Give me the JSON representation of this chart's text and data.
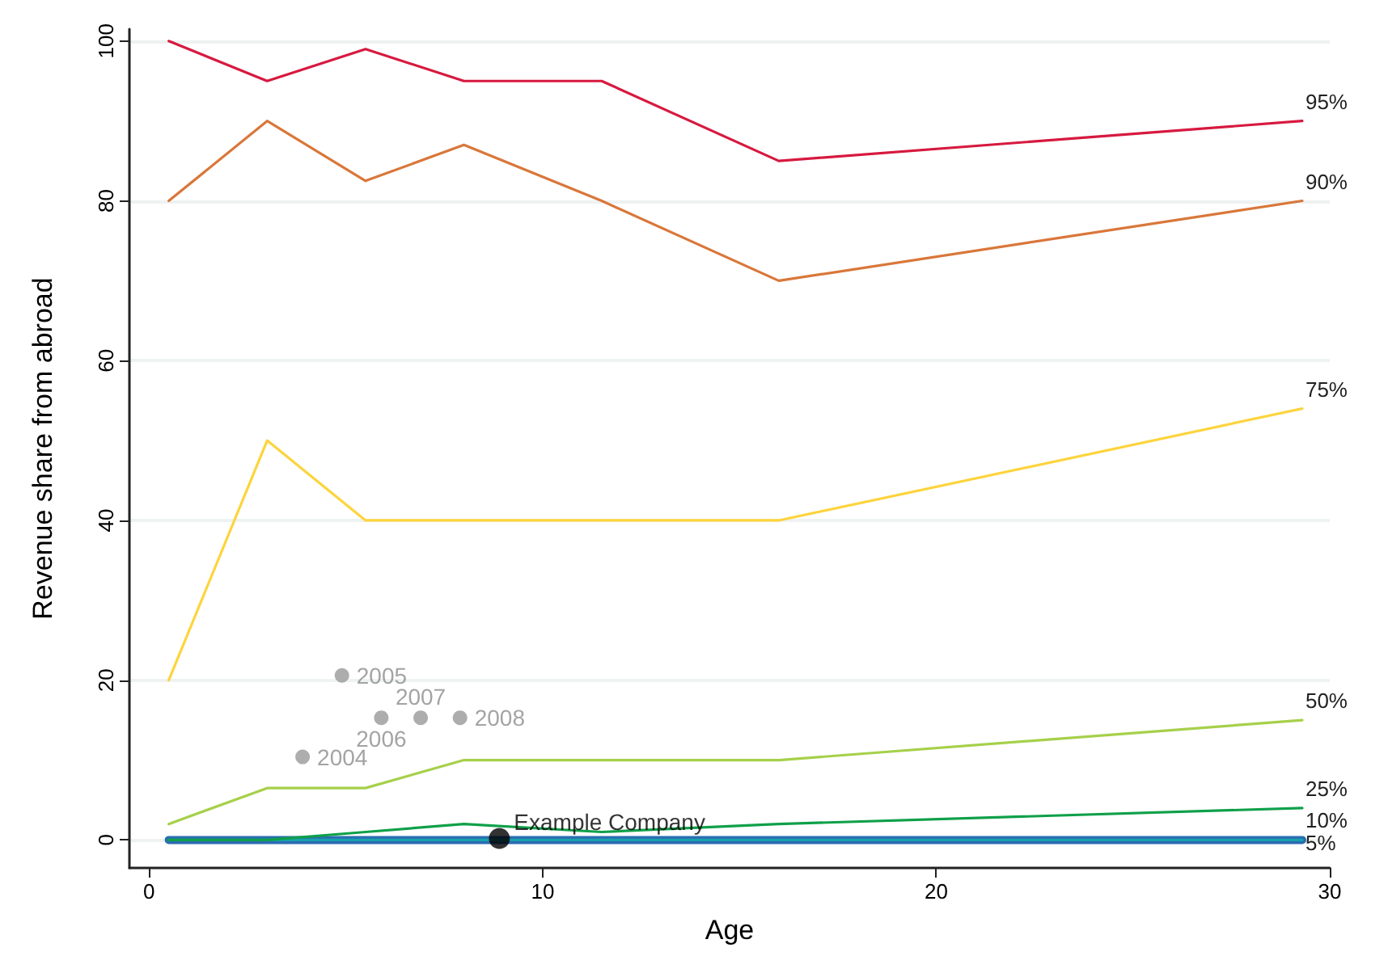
{
  "chart_data": {
    "type": "line",
    "xlabel": "Age",
    "ylabel": "Revenue share from abroad",
    "xlim": [
      -0.5,
      30
    ],
    "xticks": [
      0,
      10,
      20,
      30
    ],
    "ylim": [
      -3.5,
      101.5
    ],
    "yticks": [
      0,
      20,
      40,
      60,
      80,
      100
    ],
    "grid": "y",
    "legend": false,
    "x": [
      0.5,
      3,
      5.5,
      8,
      11.5,
      16,
      29.3
    ],
    "series": [
      {
        "name": "5%",
        "color": "#2a6db0",
        "values": [
          0,
          0,
          0,
          0,
          0,
          0,
          0
        ]
      },
      {
        "name": "10%",
        "color": "#17a2ad",
        "values": [
          0,
          0,
          0,
          0,
          0,
          0,
          0
        ]
      },
      {
        "name": "25%",
        "color": "#0fa049",
        "values": [
          0,
          0,
          1,
          2,
          1,
          2,
          4
        ]
      },
      {
        "name": "50%",
        "color": "#a6d04a",
        "values": [
          2,
          6.5,
          6.5,
          10,
          10,
          10,
          15
        ]
      },
      {
        "name": "75%",
        "color": "#fdd43d",
        "values": [
          20,
          50,
          40,
          40,
          40,
          40,
          54
        ]
      },
      {
        "name": "90%",
        "color": "#d9773a",
        "values": [
          80,
          90,
          82.5,
          87,
          80,
          70,
          80
        ]
      },
      {
        "name": "95%",
        "color": "#d7193f",
        "values": [
          100,
          95,
          99,
          95,
          95,
          85,
          90
        ]
      },
      {
        "type": "scatter",
        "marker": "circle",
        "color": "#999999",
        "x": [
          3.9,
          4.9,
          5.9,
          6.9,
          7.9
        ],
        "values": [
          10.4,
          20.6,
          15.3,
          15.3,
          15.3
        ]
      },
      {
        "type": "scatter",
        "marker": "circle",
        "color": "#000000",
        "x": [
          8.9
        ],
        "values": [
          0.2
        ]
      }
    ],
    "annotations": [
      {
        "text": "2004",
        "x": 3.9,
        "y": 10.4
      },
      {
        "text": "2005",
        "x": 4.9,
        "y": 20.6
      },
      {
        "text": "2006",
        "x": 5.9,
        "y": 15.3
      },
      {
        "text": "2007",
        "x": 6.9,
        "y": 15.3
      },
      {
        "text": "2008",
        "x": 7.9,
        "y": 15.3
      },
      {
        "text": "Example Company",
        "x": 8.9,
        "y": 0.2
      }
    ]
  }
}
